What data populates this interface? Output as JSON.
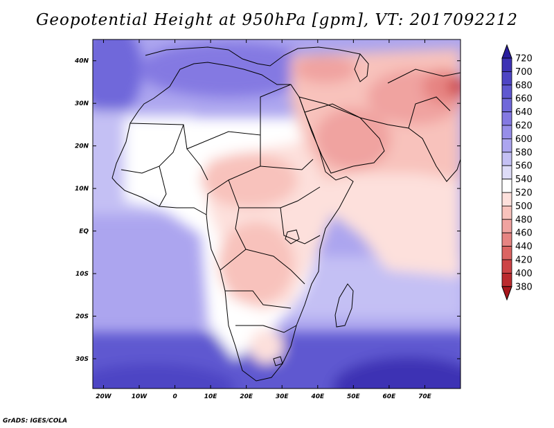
{
  "title": "Geopotential Height at 950hPa [gpm], VT: 2017092212",
  "footer": "GrADS: IGES/COLA",
  "map": {
    "lon_range": [
      -23,
      80
    ],
    "lat_range": [
      -37,
      45
    ],
    "lat_labels": [
      {
        "lat": 40,
        "label": "40N"
      },
      {
        "lat": 30,
        "label": "30N"
      },
      {
        "lat": 20,
        "label": "20N"
      },
      {
        "lat": 10,
        "label": "10N"
      },
      {
        "lat": 0,
        "label": "EQ"
      },
      {
        "lat": -10,
        "label": "10S"
      },
      {
        "lat": -20,
        "label": "20S"
      },
      {
        "lat": -30,
        "label": "30S"
      }
    ],
    "lon_labels": [
      {
        "lon": -20,
        "label": "20W"
      },
      {
        "lon": -10,
        "label": "10W"
      },
      {
        "lon": 0,
        "label": "0"
      },
      {
        "lon": 10,
        "label": "10E"
      },
      {
        "lon": 20,
        "label": "20E"
      },
      {
        "lon": 30,
        "label": "30E"
      },
      {
        "lon": 40,
        "label": "40E"
      },
      {
        "lon": 50,
        "label": "50E"
      },
      {
        "lon": 60,
        "label": "60E"
      },
      {
        "lon": 70,
        "label": "70E"
      }
    ]
  },
  "colorbar": {
    "levels": [
      "720",
      "700",
      "680",
      "660",
      "640",
      "620",
      "600",
      "580",
      "560",
      "540",
      "520",
      "500",
      "480",
      "460",
      "440",
      "420",
      "400",
      "380"
    ],
    "colors": [
      "#2a1e9e",
      "#3d32b4",
      "#4e45c4",
      "#5f58d0",
      "#7068da",
      "#8479e2",
      "#978ee9",
      "#aca5ef",
      "#c4c0f4",
      "#dedcf8",
      "#ffffff",
      "#fde0dc",
      "#f8c2bc",
      "#f0a3a0",
      "#e68482",
      "#db6462",
      "#cd4446",
      "#bb2a2e",
      "#a8161c"
    ]
  }
}
